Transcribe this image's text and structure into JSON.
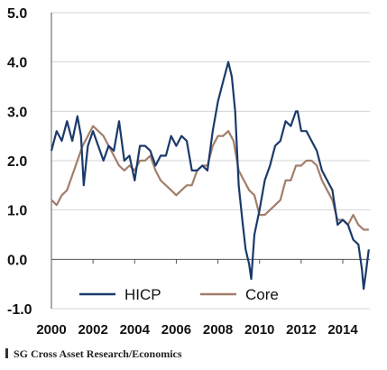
{
  "chart_data": {
    "type": "line",
    "title": "",
    "xlabel": "",
    "ylabel": "",
    "xlim": [
      2000,
      2015.3
    ],
    "ylim": [
      -1.0,
      5.0
    ],
    "x_ticks": [
      "2000",
      "2002",
      "2004",
      "2006",
      "2008",
      "2010",
      "2012",
      "2014"
    ],
    "y_ticks": [
      "-1.0",
      "0.0",
      "1.0",
      "2.0",
      "3.0",
      "4.0",
      "5.0"
    ],
    "grid": "horizontal",
    "legend_position": "bottom",
    "series": [
      {
        "name": "HICP",
        "color": "#1b3a6b",
        "x": [
          2000.0,
          2000.25,
          2000.5,
          2000.75,
          2001.0,
          2001.25,
          2001.42,
          2001.55,
          2001.75,
          2002.0,
          2002.25,
          2002.5,
          2002.75,
          2003.0,
          2003.25,
          2003.5,
          2003.75,
          2004.0,
          2004.25,
          2004.5,
          2004.75,
          2005.0,
          2005.25,
          2005.5,
          2005.75,
          2006.0,
          2006.25,
          2006.5,
          2006.75,
          2007.0,
          2007.25,
          2007.5,
          2007.75,
          2008.0,
          2008.25,
          2008.5,
          2008.67,
          2008.83,
          2009.0,
          2009.17,
          2009.33,
          2009.5,
          2009.6,
          2009.75,
          2010.0,
          2010.25,
          2010.5,
          2010.75,
          2011.0,
          2011.25,
          2011.5,
          2011.75,
          2011.83,
          2012.0,
          2012.25,
          2012.5,
          2012.75,
          2013.0,
          2013.25,
          2013.5,
          2013.75,
          2014.0,
          2014.25,
          2014.5,
          2014.75,
          2014.92,
          2015.0,
          2015.1,
          2015.25
        ],
        "values": [
          2.2,
          2.6,
          2.4,
          2.8,
          2.4,
          2.9,
          2.5,
          1.5,
          2.3,
          2.6,
          2.3,
          2.0,
          2.3,
          2.2,
          2.8,
          2.0,
          2.1,
          1.6,
          2.3,
          2.3,
          2.2,
          1.9,
          2.1,
          2.1,
          2.5,
          2.3,
          2.5,
          2.4,
          1.8,
          1.8,
          1.9,
          1.8,
          2.6,
          3.2,
          3.6,
          4.0,
          3.7,
          3.0,
          1.5,
          0.8,
          0.2,
          -0.1,
          -0.4,
          0.5,
          1.0,
          1.6,
          1.9,
          2.3,
          2.4,
          2.8,
          2.7,
          3.0,
          3.0,
          2.6,
          2.6,
          2.4,
          2.2,
          1.8,
          1.6,
          1.4,
          0.7,
          0.8,
          0.7,
          0.4,
          0.3,
          -0.2,
          -0.6,
          -0.3,
          0.2
        ]
      },
      {
        "name": "Core",
        "color": "#a27e6b",
        "x": [
          2000.0,
          2000.25,
          2000.5,
          2000.75,
          2001.0,
          2001.25,
          2001.5,
          2001.75,
          2002.0,
          2002.25,
          2002.5,
          2002.75,
          2003.0,
          2003.25,
          2003.5,
          2003.75,
          2004.0,
          2004.25,
          2004.5,
          2004.75,
          2005.0,
          2005.25,
          2005.5,
          2005.75,
          2006.0,
          2006.25,
          2006.5,
          2006.75,
          2007.0,
          2007.25,
          2007.5,
          2007.75,
          2008.0,
          2008.25,
          2008.5,
          2008.75,
          2009.0,
          2009.25,
          2009.5,
          2009.75,
          2010.0,
          2010.25,
          2010.5,
          2010.75,
          2011.0,
          2011.25,
          2011.5,
          2011.75,
          2012.0,
          2012.25,
          2012.5,
          2012.75,
          2013.0,
          2013.25,
          2013.5,
          2013.75,
          2014.0,
          2014.25,
          2014.5,
          2014.75,
          2015.0,
          2015.25
        ],
        "values": [
          1.2,
          1.1,
          1.3,
          1.4,
          1.7,
          2.0,
          2.3,
          2.5,
          2.7,
          2.6,
          2.5,
          2.3,
          2.1,
          1.9,
          1.8,
          1.9,
          1.8,
          2.0,
          2.0,
          2.1,
          1.8,
          1.6,
          1.5,
          1.4,
          1.3,
          1.4,
          1.5,
          1.5,
          1.8,
          1.9,
          1.9,
          2.3,
          2.5,
          2.5,
          2.6,
          2.4,
          1.8,
          1.6,
          1.4,
          1.3,
          0.9,
          0.9,
          1.0,
          1.1,
          1.2,
          1.6,
          1.6,
          1.9,
          1.9,
          2.0,
          2.0,
          1.9,
          1.6,
          1.4,
          1.2,
          0.8,
          0.8,
          0.7,
          0.9,
          0.7,
          0.6,
          0.6
        ]
      }
    ]
  },
  "source": "SG Cross Asset Research/Economics"
}
